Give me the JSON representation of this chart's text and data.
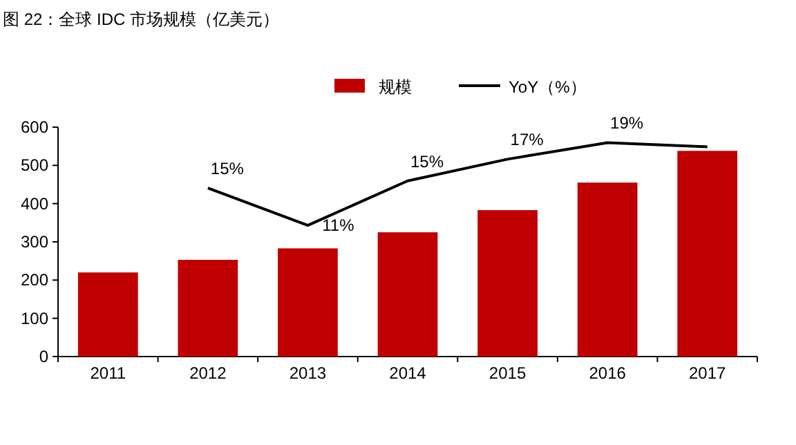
{
  "chart_data": {
    "type": "bar",
    "title": "图 22：全球 IDC 市场规模（亿美元）",
    "categories": [
      "2011",
      "2012",
      "2013",
      "2014",
      "2015",
      "2016",
      "2017"
    ],
    "series": [
      {
        "name": "规模",
        "color": "#c00000",
        "values": [
          220,
          253,
          283,
          325,
          383,
          455,
          538
        ]
      },
      {
        "name": "YoY（%）",
        "type": "line",
        "axis": "y2",
        "color": "#000000",
        "values": [
          null,
          14.6,
          11,
          15.3,
          17.4,
          19,
          18.6
        ],
        "value_labels": [
          null,
          "15%",
          "11%",
          "15%",
          "17%",
          "19%",
          null
        ]
      }
    ],
    "ylim": [
      0,
      600
    ],
    "yticks": [
      0,
      100,
      200,
      300,
      400,
      500,
      600
    ],
    "y2lim": [
      -1.7,
      20.5
    ],
    "legend": "top",
    "marker": "none",
    "line_style": "solid"
  }
}
